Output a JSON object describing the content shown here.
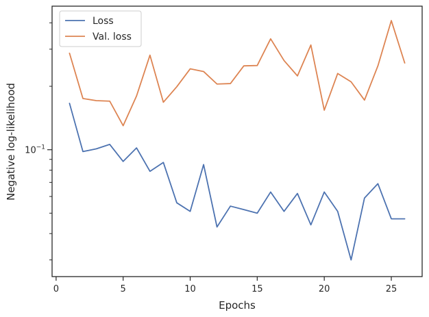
{
  "chart_data": {
    "type": "line",
    "title": "",
    "xlabel": "Epochs",
    "ylabel": "Negative log-likelihood",
    "xlim": [
      -0.3,
      27.3
    ],
    "ylim": [
      0.025,
      0.48
    ],
    "yscale": "log",
    "grid": false,
    "legend": "top-left",
    "x_ticks": [
      0,
      5,
      10,
      15,
      20,
      25
    ],
    "y_major_ticks": [
      0.1
    ],
    "y_major_tick_labels": [
      "10"
    ],
    "y_major_tick_exponents": [
      "−1"
    ],
    "y_minor_ticks": [
      0.03,
      0.04,
      0.05,
      0.06,
      0.07,
      0.08,
      0.09,
      0.2,
      0.3,
      0.4
    ],
    "x": [
      1,
      2,
      3,
      4,
      5,
      6,
      7,
      8,
      9,
      10,
      11,
      12,
      13,
      14,
      15,
      16,
      17,
      18,
      19,
      20,
      21,
      22,
      23,
      24,
      25,
      26
    ],
    "series": [
      {
        "name": "Loss",
        "color": "#4c72b0",
        "values": [
          0.166,
          0.098,
          0.101,
          0.106,
          0.088,
          0.102,
          0.079,
          0.087,
          0.056,
          0.051,
          0.085,
          0.043,
          0.054,
          0.052,
          0.05,
          0.063,
          0.051,
          0.062,
          0.044,
          0.063,
          0.051,
          0.03,
          0.059,
          0.069,
          0.047,
          0.047
        ]
      },
      {
        "name": "Val. loss",
        "color": "#dd8452",
        "values": [
          0.287,
          0.175,
          0.171,
          0.17,
          0.13,
          0.18,
          0.281,
          0.168,
          0.199,
          0.242,
          0.235,
          0.205,
          0.206,
          0.25,
          0.251,
          0.336,
          0.265,
          0.224,
          0.314,
          0.154,
          0.23,
          0.21,
          0.172,
          0.25,
          0.41,
          0.258
        ]
      }
    ]
  }
}
